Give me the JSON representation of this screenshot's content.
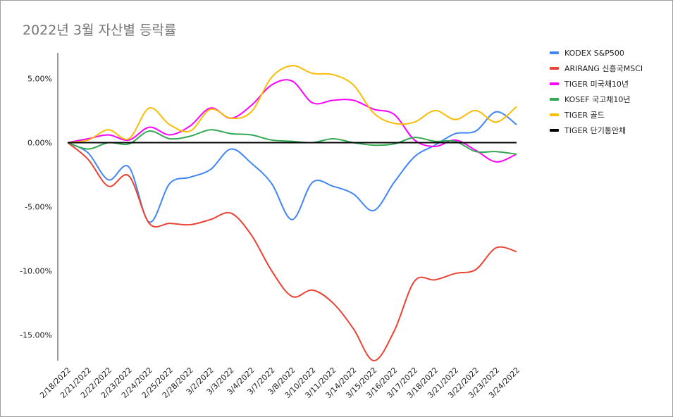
{
  "title": "2022년 3월 자산별 등락률",
  "chart_data": {
    "type": "line",
    "title": "2022년 3월 자산별 등락률",
    "xlabel": "",
    "ylabel": "",
    "categories": [
      "2/18/2022",
      "2/21/2022",
      "2/22/2022",
      "2/23/2022",
      "2/24/2022",
      "2/25/2022",
      "2/28/2022",
      "3/2/2022",
      "3/3/2022",
      "3/4/2022",
      "3/7/2022",
      "3/8/2022",
      "3/10/2022",
      "3/11/2022",
      "3/14/2022",
      "3/15/2022",
      "3/16/2022",
      "3/17/2022",
      "3/18/2022",
      "3/21/2022",
      "3/22/2022",
      "3/23/2022",
      "3/24/2022"
    ],
    "ylim": [
      -17,
      7
    ],
    "yticks": [
      5,
      0,
      -5,
      -10,
      -15
    ],
    "ytick_labels": [
      "5.00%",
      "0.00%",
      "-5.00%",
      "-10.00%",
      "-15.00%"
    ],
    "grid": false,
    "legend_position": "right",
    "series": [
      {
        "name": "KODEX S&P500",
        "color": "#4285f4",
        "values": [
          0,
          -0.8,
          -2.9,
          -1.9,
          -6.2,
          -3.2,
          -2.7,
          -2.1,
          -0.5,
          -1.6,
          -3.2,
          -6.0,
          -3.1,
          -3.4,
          -4.0,
          -5.3,
          -3.1,
          -1.1,
          -0.2,
          0.7,
          0.9,
          2.4,
          1.4
        ]
      },
      {
        "name": "ARIRANG 신흥국MSCI",
        "color": "#ea4335",
        "values": [
          0,
          -1.3,
          -3.4,
          -2.6,
          -6.3,
          -6.3,
          -6.4,
          -6.0,
          -5.5,
          -7.2,
          -10.0,
          -12.0,
          -11.5,
          -12.5,
          -14.5,
          -17.0,
          -14.7,
          -10.8,
          -10.7,
          -10.2,
          -9.9,
          -8.2,
          -8.5
        ]
      },
      {
        "name": "TIGER 미국채10년",
        "color": "#ff00ff",
        "values": [
          0,
          0.3,
          0.6,
          0.2,
          1.2,
          0.6,
          1.3,
          2.7,
          1.9,
          2.9,
          4.5,
          4.8,
          3.1,
          3.3,
          3.3,
          2.6,
          2.2,
          0.2,
          -0.3,
          0.2,
          -0.6,
          -1.5,
          -0.9
        ]
      },
      {
        "name": "KOSEF 국고채10년",
        "color": "#34a853",
        "values": [
          0,
          -0.5,
          0.0,
          -0.1,
          0.9,
          0.3,
          0.5,
          1.0,
          0.7,
          0.6,
          0.2,
          0.1,
          0.0,
          0.3,
          0.0,
          -0.2,
          -0.1,
          0.4,
          0.1,
          0.1,
          -0.7,
          -0.7,
          -0.9
        ]
      },
      {
        "name": "TIGER 골드",
        "color": "#fbbc04",
        "values": [
          0,
          0.2,
          1.0,
          0.3,
          2.7,
          1.4,
          0.9,
          2.6,
          1.9,
          2.4,
          5.1,
          6.0,
          5.4,
          5.3,
          4.5,
          2.3,
          1.5,
          1.6,
          2.5,
          1.8,
          2.5,
          1.6,
          2.8
        ]
      },
      {
        "name": "TIGER 단기통안채",
        "color": "#000000",
        "values": [
          0,
          0,
          0,
          0,
          0,
          0,
          0,
          0,
          0,
          0,
          0,
          0,
          0,
          0,
          0,
          0,
          0,
          0,
          0,
          0,
          0,
          0,
          0
        ]
      }
    ]
  }
}
